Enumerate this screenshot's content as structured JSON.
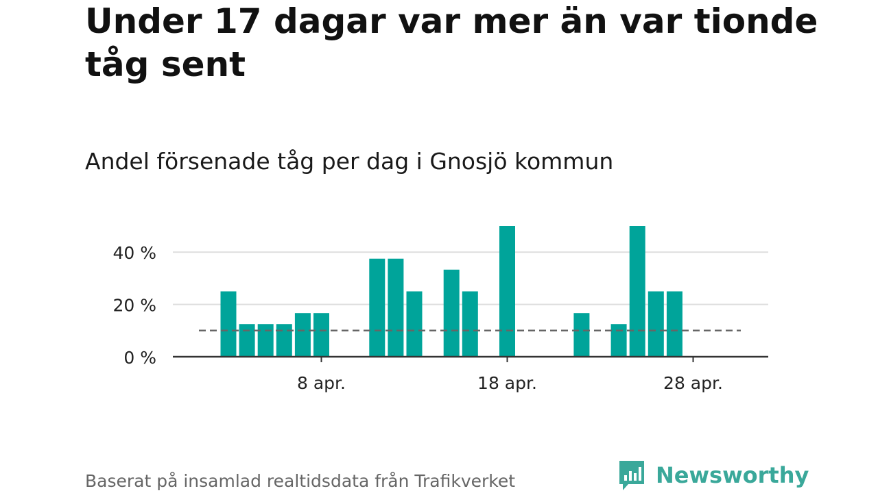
{
  "headline": "Under 17 dagar var mer än var tionde tåg sent",
  "subtitle": "Andel försenade tåg per dag i Gnosjö kommun",
  "source": "Baserat på insamlad realtidsdata från Trafikverket",
  "brand": "Newsworthy",
  "colors": {
    "bar": "#00a49a",
    "grid": "#dddddd",
    "axis": "#333333",
    "reference": "#666666",
    "brand": "#3aa89a"
  },
  "chart_data": {
    "type": "bar",
    "x_unit": "day of April",
    "categories": [
      1,
      2,
      3,
      4,
      5,
      6,
      7,
      8,
      9,
      10,
      11,
      12,
      13,
      14,
      15,
      16,
      17,
      18,
      19,
      20,
      21,
      22,
      23,
      24,
      25,
      26,
      27,
      28,
      29,
      30
    ],
    "values": [
      0,
      0,
      25,
      12.5,
      12.5,
      12.5,
      16.7,
      16.7,
      0,
      0,
      37.5,
      37.5,
      25,
      0,
      33.3,
      25,
      0,
      50,
      0,
      0,
      0,
      16.7,
      0,
      12.5,
      50,
      25,
      25,
      0,
      0,
      0
    ],
    "ylim": [
      0,
      50
    ],
    "y_ticks": [
      0,
      20,
      40
    ],
    "y_tick_labels": [
      "0 %",
      "20 %",
      "40 %"
    ],
    "x_ticks": [
      8,
      18,
      28
    ],
    "x_tick_labels": [
      "8 apr.",
      "18 apr.",
      "28 apr."
    ],
    "reference_line": 10,
    "grid": true,
    "xlabel": "",
    "ylabel": ""
  }
}
